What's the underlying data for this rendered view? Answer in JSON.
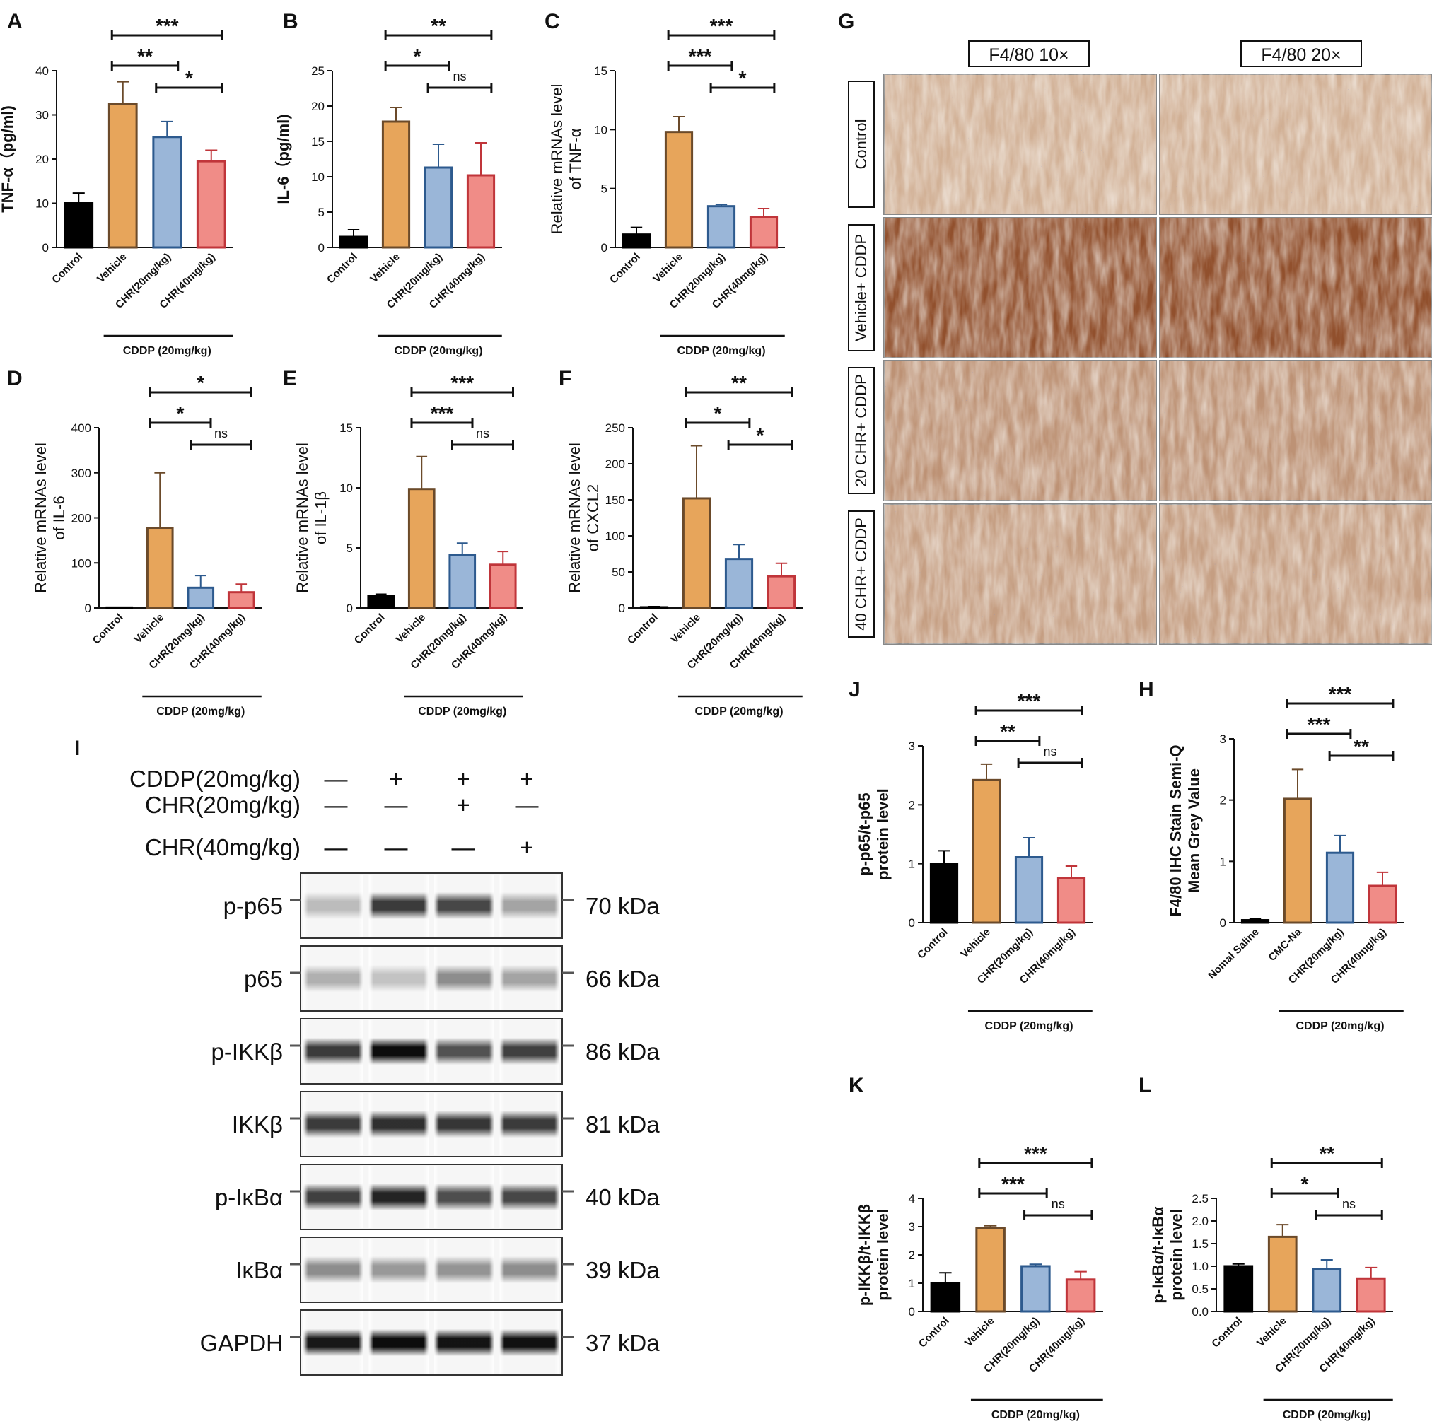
{
  "colors": {
    "control": "#000000",
    "vehicle": "#E7A55B",
    "chr20": "#9AB6D8",
    "chr40": "#F08C87",
    "control_edge": "#000000",
    "vehicle_edge": "#6B4A2A",
    "chr20_edge": "#2D5A8E",
    "chr40_edge": "#C0353A"
  },
  "chart_data": [
    {
      "panel": "A",
      "type": "bar",
      "ylabel": "TNF-α（pg/ml)",
      "ylabel_bold": true,
      "ylim": [
        0,
        40
      ],
      "yticks": [
        0,
        10,
        20,
        30,
        40
      ],
      "categories": [
        "Control",
        "Vehicle",
        "CHR(20mg/kg)",
        "CHR(40mg/kg)"
      ],
      "values": [
        10,
        32.5,
        25,
        19.5
      ],
      "errors": [
        2.3,
        5,
        3.5,
        2.5
      ],
      "group_label": "CDDP (20mg/kg)",
      "sig": [
        {
          "from": 1,
          "to": 3,
          "label": "***"
        },
        {
          "from": 1,
          "to": 2,
          "label": "**"
        },
        {
          "from": 2,
          "to": 3,
          "label": "*"
        }
      ]
    },
    {
      "panel": "B",
      "type": "bar",
      "ylabel": "IL-6（pg/ml)",
      "ylabel_bold": true,
      "ylim": [
        0,
        25
      ],
      "yticks": [
        0,
        5,
        10,
        15,
        20,
        25
      ],
      "categories": [
        "Control",
        "Vehicle",
        "CHR(20mg/kg)",
        "CHR(40mg/kg)"
      ],
      "values": [
        1.5,
        17.8,
        11.3,
        10.2
      ],
      "errors": [
        1,
        2,
        3.3,
        4.6
      ],
      "group_label": "CDDP (20mg/kg)",
      "sig": [
        {
          "from": 1,
          "to": 3,
          "label": "**"
        },
        {
          "from": 1,
          "to": 2,
          "label": "*"
        },
        {
          "from": 2,
          "to": 3,
          "label": "ns"
        }
      ]
    },
    {
      "panel": "C",
      "type": "bar",
      "ylabel": "Relative mRNAs level",
      "ylabel2": "of TNF-α",
      "ylabel_bold": false,
      "ylim": [
        0,
        15
      ],
      "yticks": [
        0,
        5,
        10,
        15
      ],
      "categories": [
        "Control",
        "Vehicle",
        "CHR(20mg/kg)",
        "CHR(40mg/kg)"
      ],
      "values": [
        1.1,
        9.8,
        3.5,
        2.6
      ],
      "errors": [
        0.6,
        1.3,
        0.15,
        0.7
      ],
      "group_label": "CDDP (20mg/kg)",
      "sig": [
        {
          "from": 1,
          "to": 3,
          "label": "***"
        },
        {
          "from": 1,
          "to": 2,
          "label": "***"
        },
        {
          "from": 2,
          "to": 3,
          "label": "*"
        }
      ]
    },
    {
      "panel": "D",
      "type": "bar",
      "ylabel": "Relative mRNAs level",
      "ylabel2": "of IL-6",
      "ylabel_bold": false,
      "ylim": [
        0,
        400
      ],
      "yticks": [
        0,
        100,
        200,
        300,
        400
      ],
      "categories": [
        "Control",
        "Vehicle",
        "CHR(20mg/kg)",
        "CHR(40mg/kg)"
      ],
      "values": [
        1,
        178,
        45,
        35
      ],
      "errors": [
        0.5,
        122,
        27,
        18
      ],
      "group_label": "CDDP (20mg/kg)",
      "sig": [
        {
          "from": 1,
          "to": 3,
          "label": "*"
        },
        {
          "from": 1,
          "to": 2,
          "label": "*"
        },
        {
          "from": 2,
          "to": 3,
          "label": "ns"
        }
      ]
    },
    {
      "panel": "E",
      "type": "bar",
      "ylabel": "Relative mRNAs level",
      "ylabel2": "of IL-1β",
      "ylabel_bold": false,
      "ylim": [
        0,
        15
      ],
      "yticks": [
        0,
        5,
        10,
        15
      ],
      "categories": [
        "Control",
        "Vehicle",
        "CHR(20mg/kg)",
        "CHR(40mg/kg)"
      ],
      "values": [
        1,
        9.9,
        4.4,
        3.6
      ],
      "errors": [
        0.15,
        2.7,
        1,
        1.1
      ],
      "group_label": "CDDP (20mg/kg)",
      "sig": [
        {
          "from": 1,
          "to": 3,
          "label": "***"
        },
        {
          "from": 1,
          "to": 2,
          "label": "***"
        },
        {
          "from": 2,
          "to": 3,
          "label": "ns"
        }
      ]
    },
    {
      "panel": "F",
      "type": "bar",
      "ylabel": "Relative mRNAs level",
      "ylabel2": "of CXCL2",
      "ylabel_bold": false,
      "ylim": [
        0,
        250
      ],
      "yticks": [
        0,
        50,
        100,
        150,
        200,
        250
      ],
      "categories": [
        "Control",
        "Vehicle",
        "CHR(20mg/kg)",
        "CHR(40mg/kg)"
      ],
      "values": [
        1,
        152,
        68,
        44
      ],
      "errors": [
        1,
        73,
        20,
        18
      ],
      "group_label": "CDDP (20mg/kg)",
      "sig": [
        {
          "from": 1,
          "to": 3,
          "label": "**"
        },
        {
          "from": 1,
          "to": 2,
          "label": "*"
        },
        {
          "from": 2,
          "to": 3,
          "label": "*"
        }
      ]
    },
    {
      "panel": "J",
      "type": "bar",
      "ylabel": "p-p65/t-p65",
      "ylabel2": "protein level",
      "ylabel_bold": true,
      "ylim": [
        0,
        3
      ],
      "yticks": [
        0,
        1,
        2,
        3
      ],
      "categories": [
        "Control",
        "Vehicle",
        "CHR(20mg/kg)",
        "CHR(40mg/kg)"
      ],
      "values": [
        1,
        2.42,
        1.11,
        0.75
      ],
      "errors": [
        0.22,
        0.27,
        0.33,
        0.21
      ],
      "group_label": "CDDP (20mg/kg)",
      "sig": [
        {
          "from": 1,
          "to": 3,
          "label": "***"
        },
        {
          "from": 1,
          "to": 2,
          "label": "**"
        },
        {
          "from": 2,
          "to": 3,
          "label": "ns"
        }
      ]
    },
    {
      "panel": "H",
      "type": "bar",
      "ylabel": "F4/80 IHC Stain Semi-Q",
      "ylabel2": "Mean Grey Value",
      "ylabel_bold": true,
      "ylim": [
        0,
        3
      ],
      "yticks": [
        0,
        1,
        2,
        3
      ],
      "categories": [
        "Nomal Saline",
        "CMC-Na",
        "CHR(20mg/kg)",
        "CHR(40mg/kg)"
      ],
      "values": [
        0.04,
        2.02,
        1.14,
        0.6
      ],
      "errors": [
        0.02,
        0.48,
        0.28,
        0.22
      ],
      "group_label": "CDDP (20mg/kg)",
      "sig": [
        {
          "from": 1,
          "to": 3,
          "label": "***"
        },
        {
          "from": 1,
          "to": 2,
          "label": "***"
        },
        {
          "from": 2,
          "to": 3,
          "label": "**"
        }
      ]
    },
    {
      "panel": "K",
      "type": "bar",
      "ylabel": "p-IKKβ/t-IKKβ",
      "ylabel2": "protein level",
      "ylabel_bold": true,
      "ylim": [
        0,
        4
      ],
      "yticks": [
        0,
        1,
        2,
        3,
        4
      ],
      "categories": [
        "Control",
        "Vehicle",
        "CHR(20mg/kg)",
        "CHR(40mg/kg)"
      ],
      "values": [
        1,
        2.95,
        1.6,
        1.13
      ],
      "errors": [
        0.37,
        0.08,
        0.07,
        0.28
      ],
      "group_label": "CDDP (20mg/kg)",
      "sig": [
        {
          "from": 1,
          "to": 3,
          "label": "***"
        },
        {
          "from": 1,
          "to": 2,
          "label": "***"
        },
        {
          "from": 2,
          "to": 3,
          "label": "ns"
        }
      ]
    },
    {
      "panel": "L",
      "type": "bar",
      "ylabel": "p-IκBα/t-IκBα",
      "ylabel2": "protein level",
      "ylabel_bold": true,
      "ylim": [
        0,
        2.5
      ],
      "yticks": [
        "0.0",
        "0.5",
        "1.0",
        "1.5",
        "2.0",
        "2.5"
      ],
      "categories": [
        "Control",
        "Vehicle",
        "CHR(20mg/kg)",
        "CHR(40mg/kg)"
      ],
      "values": [
        1,
        1.65,
        0.94,
        0.73
      ],
      "errors": [
        0.05,
        0.27,
        0.2,
        0.24
      ],
      "group_label": "CDDP (20mg/kg)",
      "sig": [
        {
          "from": 1,
          "to": 3,
          "label": "**"
        },
        {
          "from": 1,
          "to": 2,
          "label": "*"
        },
        {
          "from": 2,
          "to": 3,
          "label": "ns"
        }
      ]
    }
  ],
  "panel_g": {
    "label": "G",
    "headers": [
      "F4/80 10×",
      "F4/80 20×"
    ],
    "rows": [
      "Control",
      "Vehicle+ CDDP",
      "20 CHR+ CDDP",
      "40 CHR+ CDDP"
    ],
    "stain_levels": [
      0.2,
      1.0,
      0.45,
      0.35
    ]
  },
  "panel_i": {
    "label": "I",
    "treatments": [
      {
        "name": "CDDP(20mg/kg)",
        "marks": [
          "—",
          "+",
          "+",
          "+"
        ]
      },
      {
        "name": "CHR(20mg/kg)",
        "marks": [
          "—",
          "—",
          "+",
          "—"
        ]
      },
      {
        "name": "CHR(40mg/kg)",
        "marks": [
          "—",
          "—",
          "—",
          "+"
        ]
      }
    ],
    "blots": [
      {
        "protein": "p-p65",
        "kda": "70 kDa",
        "intensity": [
          0.25,
          0.8,
          0.75,
          0.35
        ]
      },
      {
        "protein": "p65",
        "kda": "66 kDa",
        "intensity": [
          0.3,
          0.22,
          0.45,
          0.35
        ]
      },
      {
        "protein": "p-IKKβ",
        "kda": "86 kDa",
        "intensity": [
          0.8,
          1.0,
          0.7,
          0.78
        ]
      },
      {
        "protein": "IKKβ",
        "kda": "81 kDa",
        "intensity": [
          0.8,
          0.85,
          0.82,
          0.8
        ]
      },
      {
        "protein": "p-IκBα",
        "kda": "40 kDa",
        "intensity": [
          0.78,
          0.9,
          0.72,
          0.75
        ]
      },
      {
        "protein": "IκBα",
        "kda": "39 kDa",
        "intensity": [
          0.45,
          0.4,
          0.42,
          0.45
        ]
      },
      {
        "protein": "GAPDH",
        "kda": "37 kDa",
        "intensity": [
          0.95,
          1.0,
          0.97,
          0.98
        ]
      }
    ]
  }
}
